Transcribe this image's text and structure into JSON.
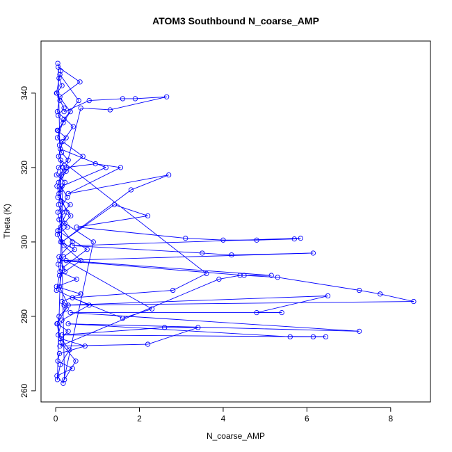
{
  "chart_data": {
    "type": "line",
    "title": "ATOM3 Southbound N_coarse_AMP",
    "xlabel": "N_coarse_AMP",
    "ylabel": "Theta (K)",
    "xlim": [
      -0.35,
      8.95
    ],
    "ylim": [
      257,
      354
    ],
    "xticks": [
      0,
      2,
      4,
      6,
      8
    ],
    "yticks": [
      260,
      280,
      300,
      320,
      340
    ],
    "grid": false,
    "series_color": "#0000ff",
    "marker": "open-circle",
    "series": [
      {
        "x": [
          0.05,
          0.12,
          0.08,
          0.15,
          0.03,
          0.1,
          0.2,
          0.06,
          0.18,
          0.04,
          0.25,
          0.09,
          0.14,
          0.3,
          0.07,
          0.02,
          0.22,
          0.11,
          0.05,
          0.35,
          0.16,
          0.08,
          0.28,
          0.04,
          0.12,
          0.45,
          0.19,
          0.06,
          0.1,
          0.5,
          0.02,
          0.6,
          0.15,
          0.25,
          0.08,
          0.04,
          0.3,
          0.12,
          0.7,
          0.09,
          0.05,
          0.4,
          0.03,
          0.18,
          0.9,
          0.22,
          0.07,
          0.15,
          1.2,
          0.11,
          0.06,
          0.35,
          0.02,
          0.1,
          0.55,
          0.2,
          0.04,
          0.65,
          0.14,
          0.08,
          0.27,
          0.05,
          0.75,
          0.16,
          0.09,
          0.3,
          0.03,
          0.12,
          0.48,
          0.21,
          0.06,
          0.58,
          0.1,
          0.04,
          0.42,
          0.17,
          0.07,
          0.25,
          0.03,
          0.13,
          0.36,
          0.05,
          0.2,
          0.6,
          0.09,
          0.02,
          0.8,
          0.15,
          0.06,
          0.33,
          0.11,
          0.04,
          0.18,
          0.07,
          0.28,
          0.05,
          0.12,
          0.4,
          0.08,
          0.22
        ],
        "y": [
          348,
          346,
          344,
          342,
          340,
          338,
          336,
          334,
          332,
          330,
          328,
          326,
          324,
          322,
          320,
          318,
          316,
          314,
          312,
          310,
          308,
          306,
          304,
          302,
          300,
          298,
          296,
          294,
          292,
          290,
          288,
          286,
          284,
          282,
          280,
          278,
          276,
          274,
          272,
          270,
          268,
          266,
          264,
          262,
          300,
          305,
          310,
          315,
          320,
          325,
          330,
          335,
          340,
          345,
          338,
          333,
          328,
          323,
          318,
          313,
          308,
          303,
          298,
          293,
          288,
          283,
          278,
          273,
          268,
          263,
          347,
          343,
          339,
          335,
          331,
          327,
          323,
          319,
          315,
          311,
          307,
          303,
          299,
          295,
          291,
          287,
          283,
          279,
          275,
          271,
          267,
          263,
          320,
          316,
          312,
          308,
          304,
          300,
          296,
          292
        ]
      },
      {
        "x": [
          0.2,
          0.8,
          1.6,
          1.9,
          2.65,
          1.3,
          0.6,
          0.25,
          0.95,
          1.55,
          0.3,
          2.7,
          1.8,
          0.15,
          1.4,
          2.2,
          0.5,
          3.1,
          4.0,
          4.8,
          5.7,
          5.85,
          0.4,
          3.5,
          4.2,
          6.15,
          0.1,
          4.5,
          5.3,
          7.25,
          7.75,
          8.55,
          0.2,
          6.5,
          4.8,
          5.4,
          0.35,
          7.25,
          0.3,
          5.6,
          6.15,
          6.45,
          0.15,
          2.6,
          3.4,
          2.2,
          0.1,
          3.9,
          4.4,
          5.15,
          0.25,
          2.3,
          1.6,
          0.4,
          2.8,
          3.6,
          0.12
        ],
        "y": [
          335,
          338,
          338.5,
          338.5,
          339,
          335.5,
          336,
          320,
          321,
          320,
          313,
          318,
          314,
          300,
          310,
          307,
          304,
          301,
          300.5,
          300.5,
          300.8,
          301,
          299,
          297,
          296.5,
          297,
          295,
          291,
          290.5,
          287,
          286,
          284,
          283,
          285.5,
          281,
          281,
          281,
          276,
          278,
          274.5,
          274.5,
          274.5,
          275,
          277,
          277,
          272.5,
          272,
          290,
          291,
          291,
          295,
          282,
          279.5,
          285,
          287,
          291.5,
          322
        ]
      }
    ]
  }
}
